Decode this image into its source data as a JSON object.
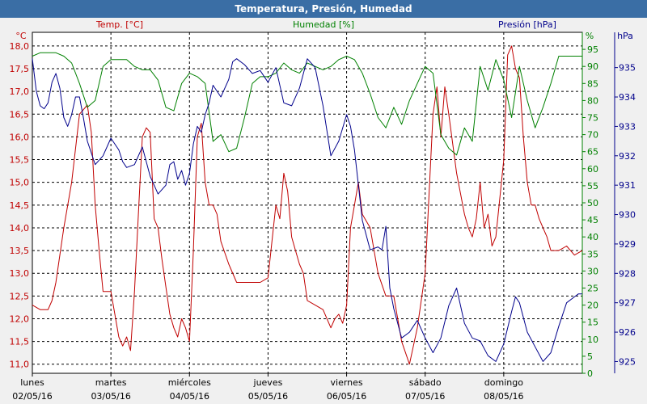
{
  "chart_data": {
    "type": "line",
    "title": "Temperatura, Presión, Humedad",
    "colors": {
      "temp": "#c00000",
      "hum": "#008000",
      "pres": "#00008b",
      "title_bg": "#3a6ea5"
    },
    "axes": {
      "temp": {
        "label": "Temp. [°C]",
        "unit": "°C",
        "range": [
          10.8,
          18.3
        ],
        "ticks": [
          "18,0",
          "17,5",
          "17,0",
          "16,5",
          "16,0",
          "15,5",
          "15,0",
          "14,5",
          "14,0",
          "13,5",
          "13,0",
          "12,5",
          "12,0",
          "11,5",
          "11,0"
        ]
      },
      "hum": {
        "label": "Humedad [%]",
        "unit": "%",
        "range": [
          0,
          100
        ],
        "ticks": [
          "95",
          "90",
          "85",
          "80",
          "75",
          "70",
          "65",
          "60",
          "55",
          "50",
          "45",
          "40",
          "35",
          "30",
          "25",
          "20",
          "15",
          "10",
          "5",
          "0"
        ]
      },
      "pres": {
        "label": "Presión [hPa]",
        "unit": "hPa",
        "range": [
          924.6,
          936.2
        ],
        "ticks": [
          "935",
          "934",
          "933",
          "932",
          "931",
          "930",
          "929",
          "928",
          "927",
          "926",
          "925"
        ]
      }
    },
    "days": [
      {
        "name": "lunes",
        "date": "02/05/16"
      },
      {
        "name": "martes",
        "date": "03/05/16"
      },
      {
        "name": "miércoles",
        "date": "04/05/16"
      },
      {
        "name": "jueves",
        "date": "05/05/16"
      },
      {
        "name": "viernes",
        "date": "06/05/16"
      },
      {
        "name": "sábado",
        "date": "07/05/16"
      },
      {
        "name": "domingo",
        "date": "08/05/16"
      }
    ],
    "series": [
      {
        "key": "temp",
        "name": "Temp. [°C]",
        "axis": "temp",
        "x": [
          0,
          0.1,
          0.2,
          0.25,
          0.3,
          0.4,
          0.5,
          0.6,
          0.7,
          0.75,
          0.8,
          0.85,
          0.9,
          1.0,
          1.1,
          1.15,
          1.2,
          1.25,
          1.3,
          1.35,
          1.4,
          1.45,
          1.5,
          1.55,
          1.6,
          1.65,
          1.7,
          1.75,
          1.8,
          1.85,
          1.9,
          1.95,
          2.0,
          2.05,
          2.1,
          2.15,
          2.2,
          2.25,
          2.3,
          2.35,
          2.4,
          2.5,
          2.6,
          2.7,
          2.8,
          2.9,
          3.0,
          3.1,
          3.15,
          3.2,
          3.25,
          3.3,
          3.35,
          3.4,
          3.45,
          3.5,
          3.6,
          3.7,
          3.8,
          3.85,
          3.9,
          3.95,
          4.0,
          4.05,
          4.1,
          4.15,
          4.2,
          4.3,
          4.4,
          4.5,
          4.6,
          4.7,
          4.8,
          4.9,
          5.0,
          5.1,
          5.15,
          5.2,
          5.25,
          5.3,
          5.4,
          5.5,
          5.55,
          5.6,
          5.65,
          5.7,
          5.75,
          5.8,
          5.85,
          5.9,
          6.0,
          6.05,
          6.1,
          6.15,
          6.2,
          6.25,
          6.3,
          6.35,
          6.4,
          6.45,
          6.5,
          6.55,
          6.6,
          6.7,
          6.8,
          6.9,
          7.0
        ],
        "values": [
          12.3,
          12.2,
          12.2,
          12.4,
          12.8,
          14.0,
          15.0,
          16.5,
          16.7,
          16.1,
          14.5,
          13.5,
          12.6,
          12.6,
          11.6,
          11.4,
          11.6,
          11.3,
          12.6,
          14.3,
          16.0,
          16.2,
          16.1,
          14.2,
          14.0,
          13.3,
          12.7,
          12.1,
          11.8,
          11.6,
          12.0,
          11.8,
          11.5,
          13.5,
          16.0,
          16.3,
          15.0,
          14.5,
          14.5,
          14.3,
          13.7,
          13.2,
          12.8,
          12.8,
          12.8,
          12.8,
          12.9,
          14.5,
          14.2,
          15.2,
          14.8,
          13.8,
          13.5,
          13.2,
          13.0,
          12.4,
          12.3,
          12.2,
          11.8,
          12.0,
          12.1,
          11.9,
          12.3,
          14.0,
          14.5,
          15.0,
          14.3,
          14.0,
          13.0,
          12.5,
          12.5,
          11.5,
          11.0,
          11.8,
          13.0,
          16.5,
          17.1,
          16.0,
          17.1,
          16.5,
          15.2,
          14.3,
          14.0,
          13.8,
          14.2,
          15.0,
          14.0,
          14.3,
          13.6,
          13.8,
          15.5,
          17.8,
          18.0,
          17.5,
          17.3,
          16.0,
          15.0,
          14.5,
          14.5,
          14.2,
          14.0,
          13.8,
          13.5,
          13.5,
          13.6,
          13.4,
          13.5
        ]
      },
      {
        "key": "hum",
        "name": "Humedad [%]",
        "axis": "hum",
        "x": [
          0,
          0.1,
          0.2,
          0.3,
          0.4,
          0.5,
          0.6,
          0.7,
          0.8,
          0.9,
          1.0,
          1.1,
          1.2,
          1.3,
          1.4,
          1.5,
          1.6,
          1.7,
          1.8,
          1.9,
          2.0,
          2.1,
          2.2,
          2.3,
          2.4,
          2.5,
          2.6,
          2.7,
          2.8,
          2.9,
          3.0,
          3.1,
          3.2,
          3.3,
          3.4,
          3.5,
          3.6,
          3.7,
          3.8,
          3.9,
          4.0,
          4.1,
          4.2,
          4.3,
          4.4,
          4.5,
          4.6,
          4.7,
          4.8,
          4.9,
          5.0,
          5.1,
          5.2,
          5.3,
          5.4,
          5.5,
          5.6,
          5.7,
          5.8,
          5.9,
          6.0,
          6.1,
          6.2,
          6.3,
          6.4,
          6.5,
          6.6,
          6.7,
          6.8,
          6.9,
          7.0
        ],
        "values": [
          93,
          94,
          94,
          94,
          93,
          91,
          85,
          78,
          80,
          90,
          92,
          92,
          92,
          90,
          89,
          89,
          86,
          78,
          77,
          85,
          88,
          87,
          85,
          68,
          70,
          65,
          66,
          75,
          85,
          87,
          87,
          88,
          91,
          89,
          88,
          91,
          90,
          89,
          90,
          92,
          93,
          92,
          88,
          82,
          75,
          72,
          78,
          73,
          80,
          85,
          90,
          88,
          70,
          66,
          64,
          72,
          68,
          90,
          83,
          92,
          86,
          75,
          90,
          80,
          72,
          78,
          85,
          93,
          93,
          93,
          93
        ]
      },
      {
        "key": "pres",
        "name": "Presión [hPa]",
        "axis": "pres",
        "x": [
          0,
          0.05,
          0.1,
          0.15,
          0.2,
          0.25,
          0.3,
          0.35,
          0.4,
          0.45,
          0.5,
          0.55,
          0.6,
          0.65,
          0.7,
          0.8,
          0.9,
          1.0,
          1.1,
          1.15,
          1.2,
          1.3,
          1.4,
          1.5,
          1.55,
          1.6,
          1.7,
          1.75,
          1.8,
          1.85,
          1.9,
          1.95,
          2.0,
          2.05,
          2.1,
          2.15,
          2.2,
          2.25,
          2.3,
          2.4,
          2.5,
          2.55,
          2.6,
          2.7,
          2.8,
          2.9,
          3.0,
          3.1,
          3.2,
          3.3,
          3.4,
          3.5,
          3.6,
          3.7,
          3.8,
          3.9,
          4.0,
          4.05,
          4.1,
          4.2,
          4.3,
          4.4,
          4.45,
          4.5,
          4.55,
          4.6,
          4.7,
          4.8,
          4.9,
          5.0,
          5.1,
          5.2,
          5.3,
          5.4,
          5.5,
          5.6,
          5.7,
          5.8,
          5.9,
          6.0,
          6.1,
          6.15,
          6.2,
          6.3,
          6.4,
          6.5,
          6.6,
          6.7,
          6.8,
          6.9,
          6.95,
          7.0
        ],
        "values": [
          935.3,
          934.2,
          933.7,
          933.6,
          933.8,
          934.5,
          934.8,
          934.3,
          933.3,
          933.0,
          933.4,
          934.0,
          934.0,
          933.3,
          932.5,
          931.7,
          932.0,
          932.6,
          932.2,
          931.8,
          931.6,
          931.7,
          932.3,
          931.3,
          931.0,
          930.7,
          931.0,
          931.7,
          931.8,
          931.2,
          931.5,
          931.0,
          931.4,
          932.4,
          933.0,
          932.8,
          933.4,
          933.8,
          934.4,
          934.0,
          934.6,
          935.2,
          935.3,
          935.1,
          934.8,
          934.9,
          934.5,
          935.0,
          933.8,
          933.7,
          934.3,
          935.3,
          935.0,
          933.7,
          932.0,
          932.5,
          933.4,
          933.0,
          932.2,
          929.8,
          928.8,
          928.9,
          928.8,
          929.6,
          927.5,
          926.8,
          925.8,
          926.0,
          926.4,
          925.8,
          925.3,
          925.8,
          926.9,
          927.5,
          926.3,
          925.8,
          925.7,
          925.2,
          925.0,
          925.6,
          926.7,
          927.2,
          927.0,
          926.0,
          925.5,
          925.0,
          925.3,
          926.2,
          927.0,
          927.2,
          927.3,
          927.3
        ]
      }
    ]
  }
}
